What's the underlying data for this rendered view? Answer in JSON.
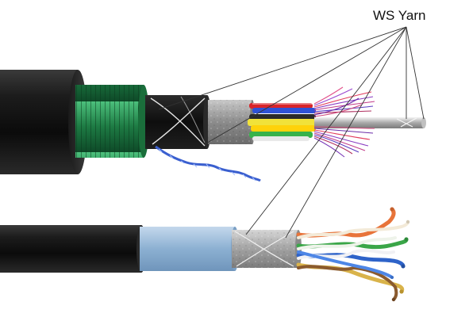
{
  "callout": {
    "label": "WS Yarn"
  },
  "illustration": {
    "subject": "cable-cross-sections",
    "cables": [
      {
        "id": "fiber-optic-armored-cable",
        "layers": [
          "black-outer-jacket",
          "green-steel-wire-armor",
          "black-inner-sheath",
          "ws-yarn-wrap",
          "grey-water-blocking-tape",
          "colored-loose-tubes",
          "colored-fibers",
          "central-strength-member",
          "blue-ripcord"
        ]
      },
      {
        "id": "twisted-pair-shielded-cable",
        "layers": [
          "black-outer-jacket",
          "light-blue-inner-jacket",
          "foil-shield-with-ws-yarn",
          "twisted-pairs"
        ]
      }
    ],
    "colors": {
      "jacket": "#161616",
      "armor": "#1f8a4c",
      "tape": "#9a9a9a",
      "inner_blue": "#8fb3d4",
      "pair_orange": "#e8743a",
      "pair_green": "#3aa648",
      "pair_blue": "#2e63c9",
      "pair_brown": "#8a5a2e"
    }
  }
}
